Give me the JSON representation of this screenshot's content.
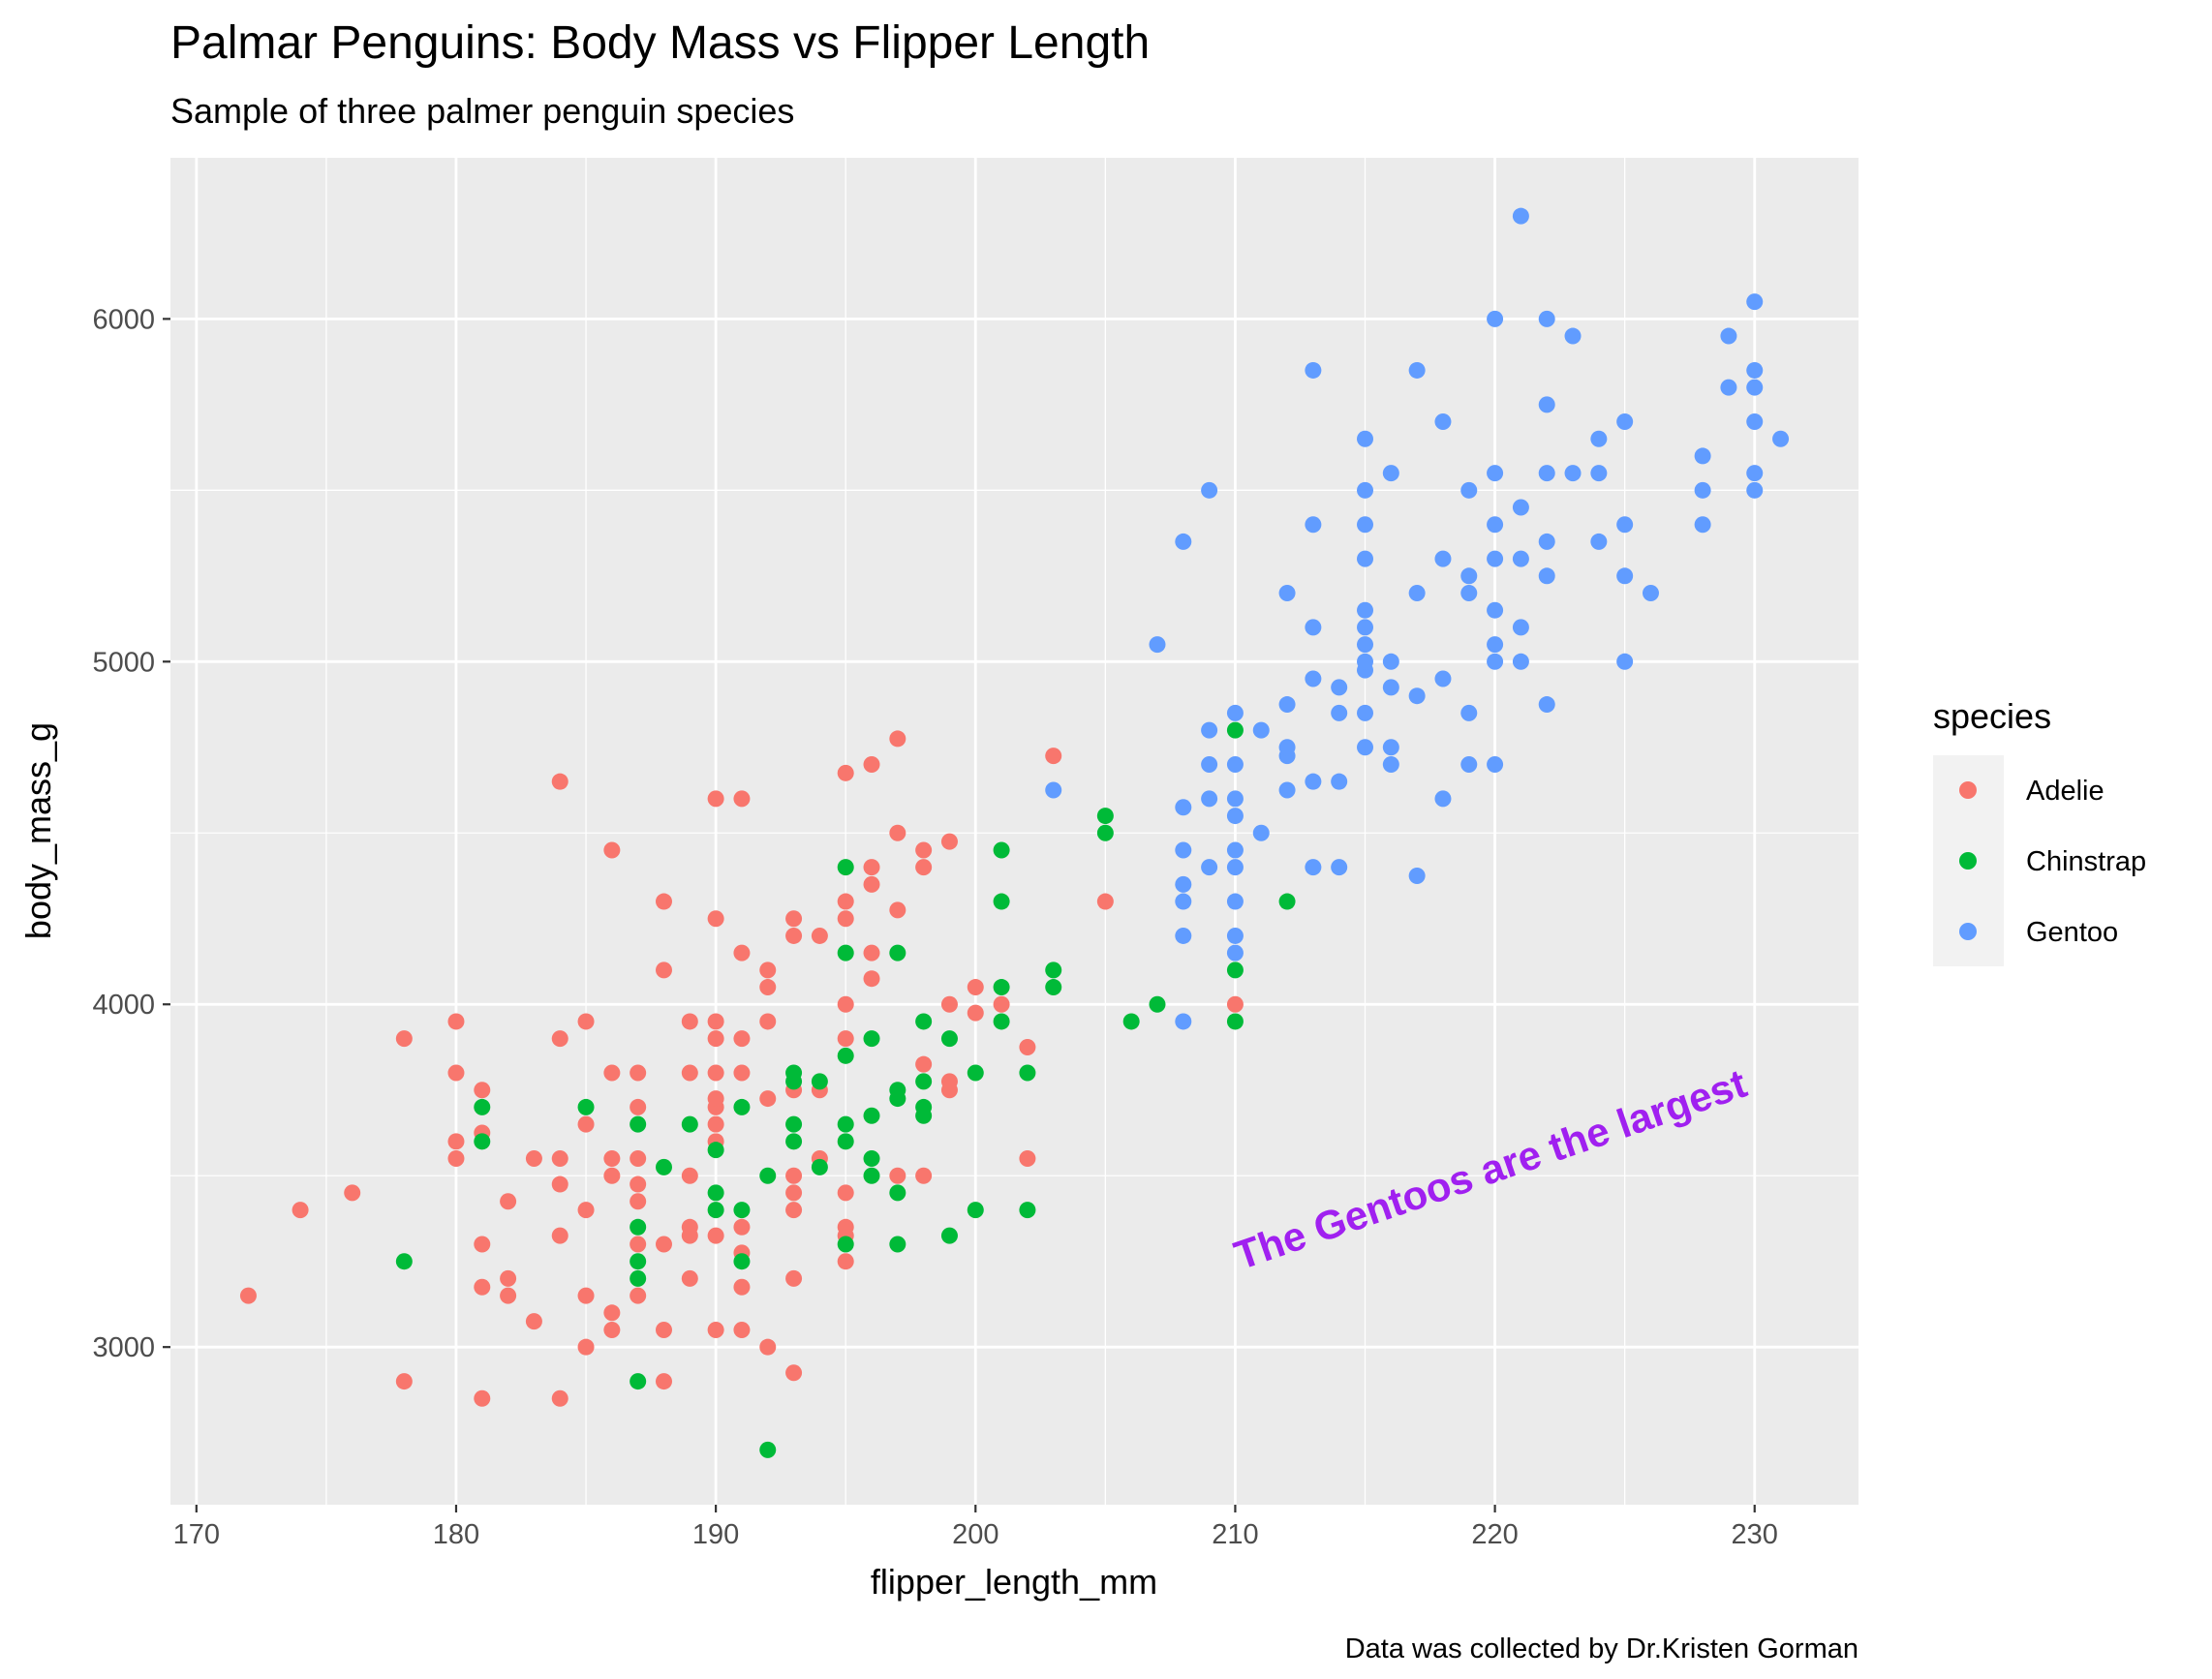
{
  "chart_data": {
    "type": "scatter",
    "title": "Palmar Penguins: Body Mass vs Flipper Length",
    "subtitle": "Sample of three palmer penguin species",
    "xlabel": "flipper_length_mm",
    "ylabel": "body_mass_g",
    "caption": "Data was collected by Dr.Kristen Gorman",
    "xlim": [
      169,
      234
    ],
    "ylim": [
      2540,
      6470
    ],
    "x_ticks": [
      170,
      180,
      190,
      200,
      210,
      220,
      230
    ],
    "x_tick_labels": [
      "170",
      "180",
      "190",
      "200",
      "210",
      "220",
      "230"
    ],
    "y_ticks": [
      3000,
      4000,
      5000,
      6000
    ],
    "y_tick_labels": [
      "3000",
      "4000",
      "5000",
      "6000"
    ],
    "grid": true,
    "legend": {
      "title": "species",
      "placement": "right"
    },
    "annotation": {
      "text": "The Gentoos are the largest",
      "x": 220,
      "y": 3480,
      "color": "#a020f0"
    },
    "series": [
      {
        "name": "Adelie",
        "color": "#f8766d",
        "points": [
          [
            172,
            3150
          ],
          [
            174,
            3400
          ],
          [
            176,
            3450
          ],
          [
            178,
            2900
          ],
          [
            178,
            3900
          ],
          [
            180,
            3550
          ],
          [
            180,
            3600
          ],
          [
            180,
            3800
          ],
          [
            180,
            3950
          ],
          [
            181,
            2850
          ],
          [
            181,
            3175
          ],
          [
            181,
            3300
          ],
          [
            181,
            3625
          ],
          [
            181,
            3750
          ],
          [
            182,
            3150
          ],
          [
            182,
            3200
          ],
          [
            182,
            3425
          ],
          [
            183,
            3075
          ],
          [
            183,
            3550
          ],
          [
            184,
            2850
          ],
          [
            184,
            3325
          ],
          [
            184,
            3475
          ],
          [
            184,
            3550
          ],
          [
            184,
            3900
          ],
          [
            184,
            4650
          ],
          [
            185,
            3000
          ],
          [
            185,
            3150
          ],
          [
            185,
            3400
          ],
          [
            185,
            3650
          ],
          [
            185,
            3950
          ],
          [
            186,
            3050
          ],
          [
            186,
            3100
          ],
          [
            186,
            3500
          ],
          [
            186,
            3550
          ],
          [
            186,
            3800
          ],
          [
            186,
            4450
          ],
          [
            187,
            3150
          ],
          [
            187,
            3300
          ],
          [
            187,
            3425
          ],
          [
            187,
            3475
          ],
          [
            187,
            3550
          ],
          [
            187,
            3700
          ],
          [
            187,
            3800
          ],
          [
            188,
            2900
          ],
          [
            188,
            3050
          ],
          [
            188,
            3300
          ],
          [
            188,
            4100
          ],
          [
            188,
            4300
          ],
          [
            189,
            3200
          ],
          [
            189,
            3325
          ],
          [
            189,
            3350
          ],
          [
            189,
            3500
          ],
          [
            189,
            3800
          ],
          [
            189,
            3950
          ],
          [
            190,
            3050
          ],
          [
            190,
            3325
          ],
          [
            190,
            3600
          ],
          [
            190,
            3650
          ],
          [
            190,
            3700
          ],
          [
            190,
            3725
          ],
          [
            190,
            3800
          ],
          [
            190,
            3900
          ],
          [
            190,
            3950
          ],
          [
            190,
            4250
          ],
          [
            190,
            4600
          ],
          [
            191,
            3050
          ],
          [
            191,
            3175
          ],
          [
            191,
            3275
          ],
          [
            191,
            3350
          ],
          [
            191,
            3800
          ],
          [
            191,
            3900
          ],
          [
            191,
            4150
          ],
          [
            191,
            4600
          ],
          [
            192,
            3000
          ],
          [
            192,
            3725
          ],
          [
            192,
            3950
          ],
          [
            192,
            4050
          ],
          [
            192,
            4100
          ],
          [
            193,
            2925
          ],
          [
            193,
            3200
          ],
          [
            193,
            3400
          ],
          [
            193,
            3450
          ],
          [
            193,
            3500
          ],
          [
            193,
            3750
          ],
          [
            193,
            4200
          ],
          [
            193,
            4250
          ],
          [
            194,
            3550
          ],
          [
            194,
            3750
          ],
          [
            194,
            4200
          ],
          [
            195,
            3250
          ],
          [
            195,
            3325
          ],
          [
            195,
            3350
          ],
          [
            195,
            3450
          ],
          [
            195,
            3900
          ],
          [
            195,
            4000
          ],
          [
            195,
            4250
          ],
          [
            195,
            4300
          ],
          [
            195,
            4675
          ],
          [
            196,
            4075
          ],
          [
            196,
            4150
          ],
          [
            196,
            4350
          ],
          [
            196,
            4400
          ],
          [
            196,
            4700
          ],
          [
            197,
            3500
          ],
          [
            197,
            4275
          ],
          [
            197,
            4500
          ],
          [
            197,
            4775
          ],
          [
            198,
            3500
          ],
          [
            198,
            3825
          ],
          [
            198,
            4400
          ],
          [
            198,
            4450
          ],
          [
            199,
            3750
          ],
          [
            199,
            3775
          ],
          [
            199,
            4000
          ],
          [
            199,
            4475
          ],
          [
            200,
            3975
          ],
          [
            200,
            4050
          ],
          [
            201,
            4000
          ],
          [
            202,
            3550
          ],
          [
            202,
            3875
          ],
          [
            203,
            4725
          ],
          [
            205,
            4300
          ],
          [
            210,
            4000
          ]
        ]
      },
      {
        "name": "Chinstrap",
        "color": "#00ba38",
        "points": [
          [
            178,
            3250
          ],
          [
            181,
            3600
          ],
          [
            181,
            3700
          ],
          [
            185,
            3700
          ],
          [
            187,
            2900
          ],
          [
            187,
            3200
          ],
          [
            187,
            3250
          ],
          [
            187,
            3350
          ],
          [
            187,
            3650
          ],
          [
            188,
            3525
          ],
          [
            189,
            3650
          ],
          [
            190,
            3400
          ],
          [
            190,
            3450
          ],
          [
            190,
            3575
          ],
          [
            191,
            3250
          ],
          [
            191,
            3400
          ],
          [
            191,
            3700
          ],
          [
            192,
            2700
          ],
          [
            192,
            3500
          ],
          [
            193,
            3600
          ],
          [
            193,
            3650
          ],
          [
            193,
            3775
          ],
          [
            193,
            3800
          ],
          [
            194,
            3525
          ],
          [
            194,
            3775
          ],
          [
            195,
            3300
          ],
          [
            195,
            3600
          ],
          [
            195,
            3650
          ],
          [
            195,
            3850
          ],
          [
            195,
            4150
          ],
          [
            195,
            4400
          ],
          [
            196,
            3500
          ],
          [
            196,
            3550
          ],
          [
            196,
            3675
          ],
          [
            196,
            3900
          ],
          [
            197,
            3300
          ],
          [
            197,
            3450
          ],
          [
            197,
            3725
          ],
          [
            197,
            3750
          ],
          [
            197,
            4150
          ],
          [
            198,
            3675
          ],
          [
            198,
            3700
          ],
          [
            198,
            3775
          ],
          [
            198,
            3950
          ],
          [
            199,
            3325
          ],
          [
            199,
            3900
          ],
          [
            200,
            3400
          ],
          [
            200,
            3800
          ],
          [
            201,
            3950
          ],
          [
            201,
            4050
          ],
          [
            201,
            4300
          ],
          [
            201,
            4450
          ],
          [
            202,
            3400
          ],
          [
            202,
            3800
          ],
          [
            203,
            4050
          ],
          [
            203,
            4100
          ],
          [
            205,
            4500
          ],
          [
            205,
            4550
          ],
          [
            206,
            3950
          ],
          [
            207,
            4000
          ],
          [
            210,
            3950
          ],
          [
            210,
            4100
          ],
          [
            210,
            4800
          ],
          [
            212,
            4300
          ]
        ]
      },
      {
        "name": "Gentoo",
        "color": "#619cff",
        "points": [
          [
            203,
            4625
          ],
          [
            207,
            5050
          ],
          [
            208,
            3950
          ],
          [
            208,
            4200
          ],
          [
            208,
            4300
          ],
          [
            208,
            4350
          ],
          [
            208,
            4450
          ],
          [
            208,
            4575
          ],
          [
            208,
            5350
          ],
          [
            209,
            4400
          ],
          [
            209,
            4600
          ],
          [
            209,
            4700
          ],
          [
            209,
            4800
          ],
          [
            209,
            5500
          ],
          [
            210,
            4150
          ],
          [
            210,
            4200
          ],
          [
            210,
            4300
          ],
          [
            210,
            4400
          ],
          [
            210,
            4450
          ],
          [
            210,
            4550
          ],
          [
            210,
            4600
          ],
          [
            210,
            4700
          ],
          [
            210,
            4850
          ],
          [
            211,
            4500
          ],
          [
            211,
            4800
          ],
          [
            212,
            4625
          ],
          [
            212,
            4725
          ],
          [
            212,
            4750
          ],
          [
            212,
            4875
          ],
          [
            212,
            5200
          ],
          [
            213,
            4400
          ],
          [
            213,
            4650
          ],
          [
            213,
            4950
          ],
          [
            213,
            5100
          ],
          [
            213,
            5400
          ],
          [
            213,
            5850
          ],
          [
            214,
            4400
          ],
          [
            214,
            4650
          ],
          [
            214,
            4850
          ],
          [
            214,
            4925
          ],
          [
            215,
            4750
          ],
          [
            215,
            4850
          ],
          [
            215,
            4975
          ],
          [
            215,
            5000
          ],
          [
            215,
            5050
          ],
          [
            215,
            5100
          ],
          [
            215,
            5150
          ],
          [
            215,
            5300
          ],
          [
            215,
            5400
          ],
          [
            215,
            5500
          ],
          [
            215,
            5650
          ],
          [
            216,
            4700
          ],
          [
            216,
            4750
          ],
          [
            216,
            4925
          ],
          [
            216,
            5000
          ],
          [
            216,
            5550
          ],
          [
            217,
            4375
          ],
          [
            217,
            4900
          ],
          [
            217,
            5200
          ],
          [
            217,
            5850
          ],
          [
            218,
            4600
          ],
          [
            218,
            4950
          ],
          [
            218,
            5300
          ],
          [
            218,
            5700
          ],
          [
            219,
            4700
          ],
          [
            219,
            4850
          ],
          [
            219,
            5200
          ],
          [
            219,
            5250
          ],
          [
            219,
            5500
          ],
          [
            220,
            4700
          ],
          [
            220,
            5000
          ],
          [
            220,
            5050
          ],
          [
            220,
            5150
          ],
          [
            220,
            5300
          ],
          [
            220,
            5400
          ],
          [
            220,
            5550
          ],
          [
            220,
            6000
          ],
          [
            221,
            5000
          ],
          [
            221,
            5100
          ],
          [
            221,
            5300
          ],
          [
            221,
            5450
          ],
          [
            221,
            6300
          ],
          [
            222,
            4875
          ],
          [
            222,
            5250
          ],
          [
            222,
            5350
          ],
          [
            222,
            5550
          ],
          [
            222,
            5750
          ],
          [
            222,
            6000
          ],
          [
            223,
            5550
          ],
          [
            223,
            5950
          ],
          [
            224,
            5350
          ],
          [
            224,
            5550
          ],
          [
            224,
            5650
          ],
          [
            225,
            5000
          ],
          [
            225,
            5250
          ],
          [
            225,
            5400
          ],
          [
            225,
            5700
          ],
          [
            226,
            5200
          ],
          [
            228,
            5400
          ],
          [
            228,
            5500
          ],
          [
            228,
            5600
          ],
          [
            229,
            5800
          ],
          [
            229,
            5950
          ],
          [
            230,
            5500
          ],
          [
            230,
            5550
          ],
          [
            230,
            5700
          ],
          [
            230,
            5800
          ],
          [
            230,
            5850
          ],
          [
            230,
            6050
          ],
          [
            231,
            5650
          ]
        ]
      }
    ]
  }
}
